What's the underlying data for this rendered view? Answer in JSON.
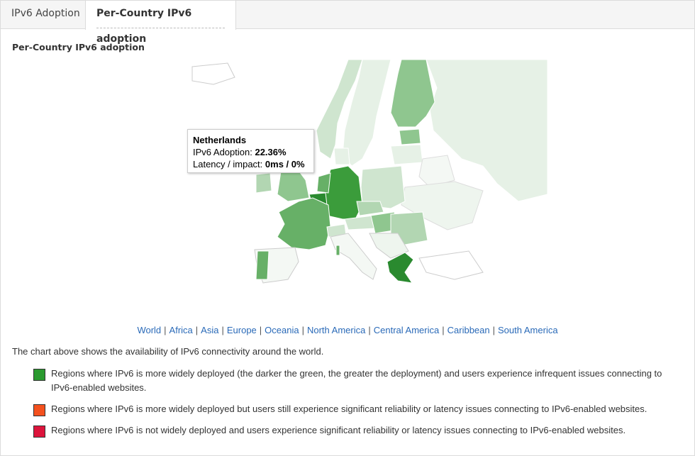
{
  "tabs": [
    {
      "label": "IPv6 Adoption"
    },
    {
      "label": "Per-Country IPv6 adoption"
    }
  ],
  "section_title": "Per-Country IPv6 adoption",
  "tooltip": {
    "country": "Netherlands",
    "adoption_label": "IPv6 Adoption:",
    "adoption_value": "22.36%",
    "latency_label": "Latency / impact:",
    "latency_value": "0ms / 0%"
  },
  "regions": [
    "World",
    "Africa",
    "Asia",
    "Europe",
    "Oceania",
    "North America",
    "Central America",
    "Caribbean",
    "South America"
  ],
  "explanation": "The chart above shows the availability of IPv6 connectivity around the world.",
  "legend": [
    {
      "color": "#2a9a2f",
      "text": "Regions where IPv6 is more widely deployed (the darker the green, the greater the deployment) and users experience infrequent issues connecting to IPv6-enabled websites."
    },
    {
      "color": "#f4511e",
      "text": "Regions where IPv6 is more widely deployed but users still experience significant reliability or latency issues connecting to IPv6-enabled websites."
    },
    {
      "color": "#dc143c",
      "text": "Regions where IPv6 is not widely deployed and users experience significant reliability or latency issues connecting to IPv6-enabled websites."
    }
  ],
  "map_colors": {
    "none": "#f4f8f4",
    "very_low": "#e6f1e6",
    "low": "#cfe5cf",
    "mid_low": "#b2d6b2",
    "mid": "#8fc68f",
    "mid_high": "#67b067",
    "high": "#3b9c3b",
    "highest": "#2a8a2f",
    "border": "#ffffff"
  }
}
